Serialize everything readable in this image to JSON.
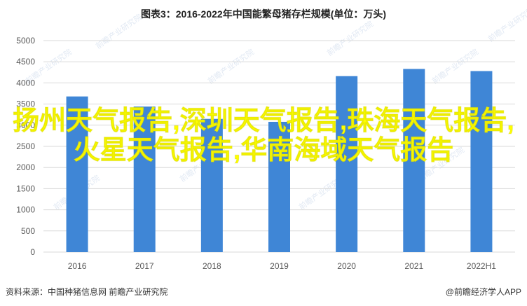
{
  "title": "图表3：2016-2022年中国能繁母猪存栏规模(单位：万头)",
  "overlay_text": "扬州天气报告,深圳天气报告,珠海天气报告,火星天气报告,华南海域天气报告",
  "watermark": "前瞻产业研究院",
  "footer": {
    "source": "资料来源：中国种猪信息网 前瞻产业研究院",
    "brand": "@前瞻经济学人APP"
  },
  "colors": {
    "bar": "#3f86d6",
    "grid": "#d9d9d9",
    "axis_text": "#595959"
  },
  "chart_data": {
    "type": "bar",
    "title": "图表3：2016-2022年中国能繁母猪存栏规模(单位：万头)",
    "categories": [
      "2016",
      "2017",
      "2018",
      "2019",
      "2020",
      "2021",
      "2022H1"
    ],
    "values": [
      3680,
      3440,
      3150,
      3080,
      4160,
      4330,
      4280
    ],
    "ylim": [
      0,
      5000
    ],
    "yticks": [
      0,
      500,
      1000,
      1500,
      2000,
      2500,
      3000,
      3500,
      4000,
      4500,
      5000
    ],
    "xlabel": "",
    "ylabel": "",
    "grid": true,
    "legend": "none"
  }
}
